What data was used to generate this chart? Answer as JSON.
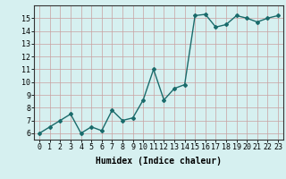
{
  "x": [
    0,
    1,
    2,
    3,
    4,
    5,
    6,
    7,
    8,
    9,
    10,
    11,
    12,
    13,
    14,
    15,
    16,
    17,
    18,
    19,
    20,
    21,
    22,
    23
  ],
  "y": [
    6.0,
    6.5,
    7.0,
    7.5,
    6.0,
    6.5,
    6.2,
    7.8,
    7.0,
    7.2,
    8.6,
    11.0,
    8.6,
    9.5,
    9.8,
    15.2,
    15.3,
    14.3,
    14.5,
    15.2,
    15.0,
    14.7,
    15.0,
    15.2
  ],
  "line_color": "#1a6b6b",
  "marker": "D",
  "marker_size": 2,
  "bg_color": "#d6f0f0",
  "grid_color": "#c8a0a0",
  "xlabel": "Humidex (Indice chaleur)",
  "xlabel_fontsize": 7,
  "xlim": [
    -0.5,
    23.5
  ],
  "ylim": [
    5.5,
    16.0
  ],
  "yticks": [
    6,
    7,
    8,
    9,
    10,
    11,
    12,
    13,
    14,
    15
  ],
  "xticks": [
    0,
    1,
    2,
    3,
    4,
    5,
    6,
    7,
    8,
    9,
    10,
    11,
    12,
    13,
    14,
    15,
    16,
    17,
    18,
    19,
    20,
    21,
    22,
    23
  ],
  "tick_fontsize": 6,
  "linewidth": 1.0
}
